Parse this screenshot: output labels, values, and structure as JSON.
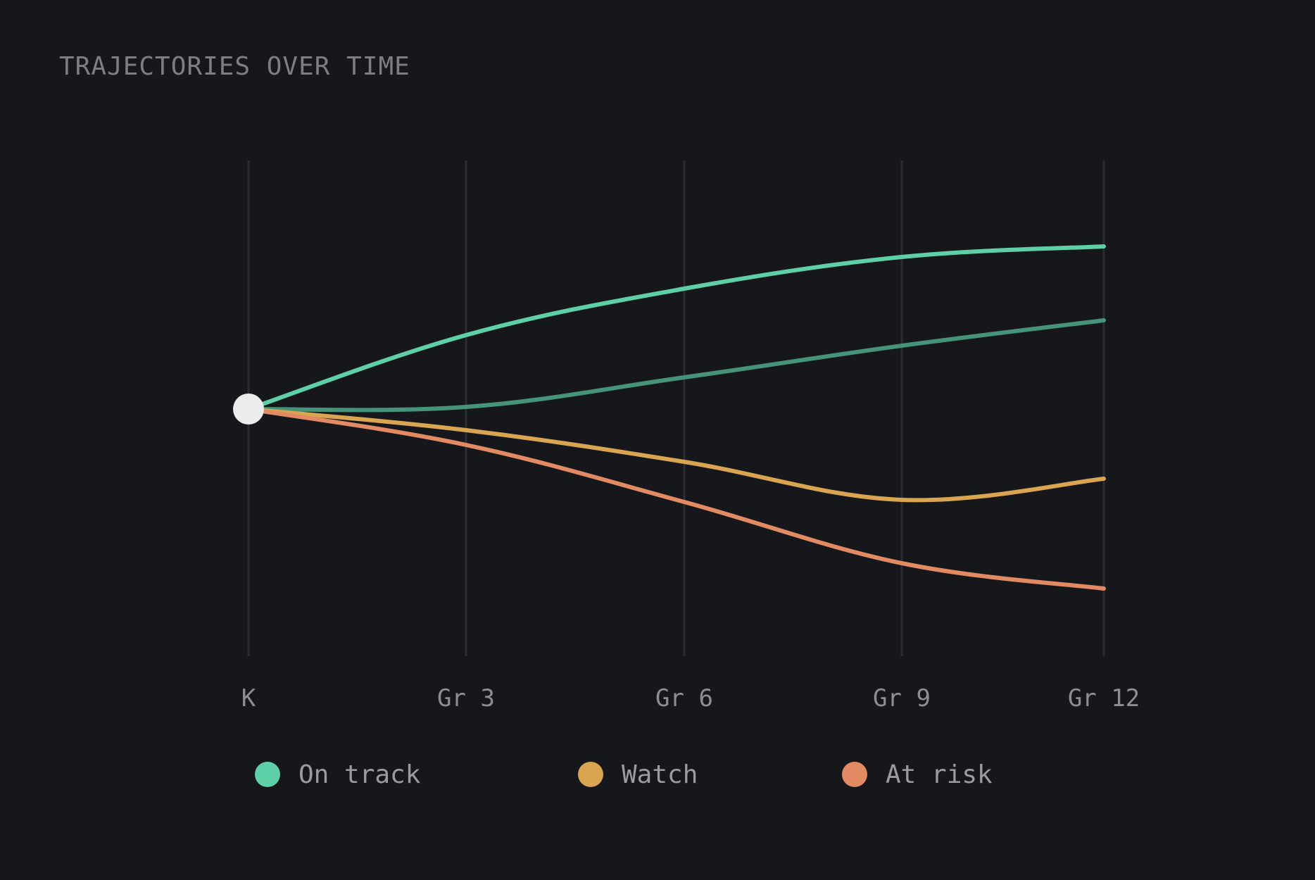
{
  "title": "TRAJECTORIES OVER TIME",
  "colors": {
    "background": "#16171b",
    "gridline": "#2c2d32",
    "origin": "#ececec",
    "on_track": "#5ed0a8",
    "on_track_secondary": "#45947a",
    "watch": "#d9a551",
    "at_risk": "#e28a62"
  },
  "chart_data": {
    "type": "line",
    "categories": [
      "K",
      "Gr 3",
      "Gr 6",
      "Gr 9",
      "Gr 12"
    ],
    "ylim": [
      -1.0,
      1.0
    ],
    "grid": true,
    "legend_position": "bottom",
    "series": [
      {
        "group": "On track",
        "color": "#5ed0a8",
        "values": [
          0,
          0.35,
          0.57,
          0.72,
          0.77
        ]
      },
      {
        "group": "On track",
        "color": "#45947a",
        "values": [
          0,
          0.01,
          0.15,
          0.3,
          0.42
        ]
      },
      {
        "group": "Watch",
        "color": "#d9a551",
        "values": [
          0,
          -0.1,
          -0.25,
          -0.43,
          -0.33
        ]
      },
      {
        "group": "At risk",
        "color": "#e28a62",
        "values": [
          0,
          -0.17,
          -0.44,
          -0.73,
          -0.85
        ]
      }
    ]
  },
  "legend": [
    {
      "label": "On track",
      "color": "#5ed0a8"
    },
    {
      "label": "Watch",
      "color": "#d9a551"
    },
    {
      "label": "At risk",
      "color": "#e28a62"
    }
  ]
}
